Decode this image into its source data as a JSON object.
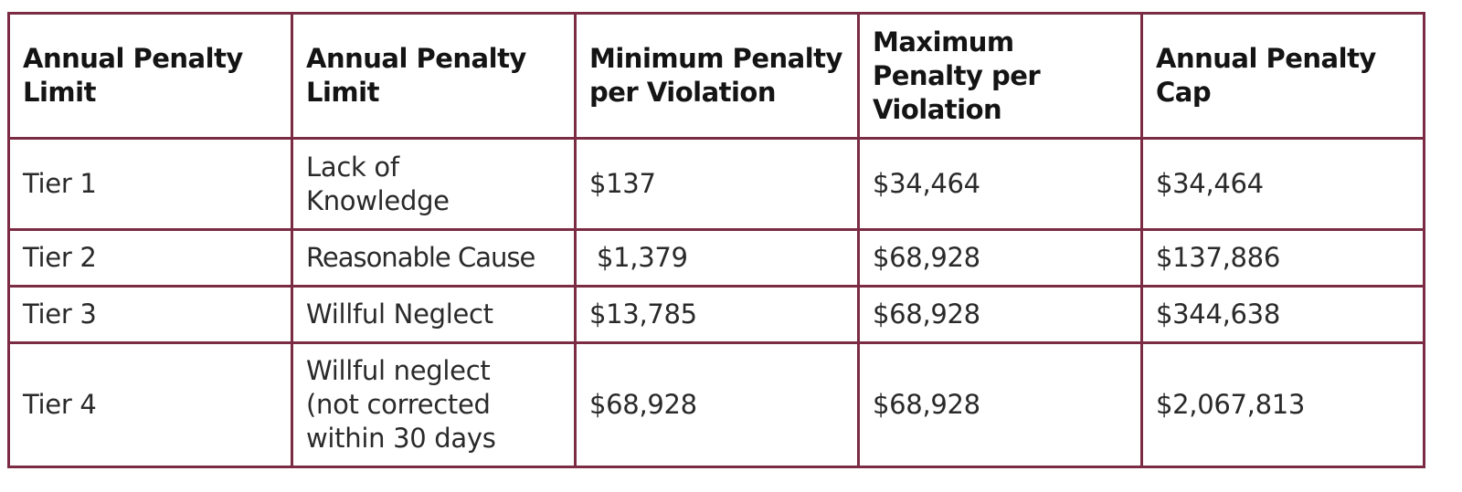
{
  "table": {
    "headers": [
      "Annual Penalty Limit",
      "Annual Penalty Limit",
      "Minimum Penalty per Violation",
      "Maximum Penalty per Violation",
      "Annual Penalty Cap"
    ],
    "rows": [
      [
        "Tier 1",
        "Lack of Knowledge",
        "$137",
        "$34,464",
        "$34,464"
      ],
      [
        "Tier 2",
        "Reasonable Cause",
        "$1,379",
        "$68,928",
        "$137,886"
      ],
      [
        "Tier 3",
        "Willful Neglect",
        "$13,785",
        "$68,928",
        "$344,638"
      ],
      [
        "Tier 4",
        "Willful neglect (not corrected within 30 days",
        "$68,928",
        "$68,928",
        "$2,067,813"
      ]
    ],
    "colors": {
      "border": "#7b2c44",
      "text": "#1a1a1a"
    }
  }
}
